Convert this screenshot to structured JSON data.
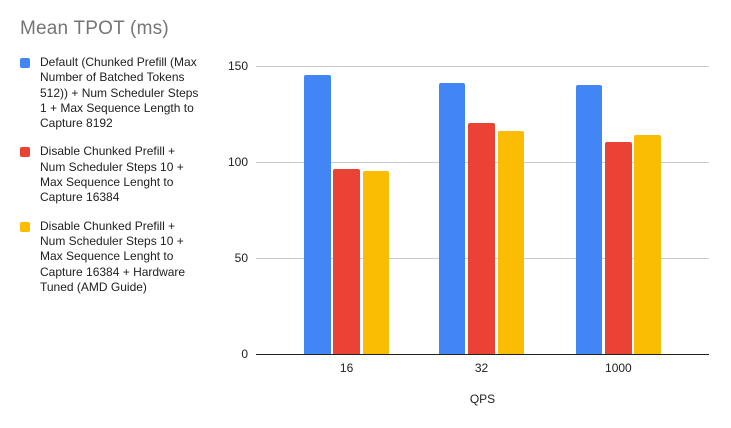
{
  "chart_data": {
    "type": "bar",
    "title": "Mean TPOT (ms)",
    "xlabel": "QPS",
    "ylabel": "",
    "categories": [
      "16",
      "32",
      "1000"
    ],
    "series": [
      {
        "name": "Default (Chunked Prefill (Max\nNumber of Batched Tokens\n512)) + Num Scheduler Steps\n1 + Max Sequence Length to\nCapture 8192",
        "color": "#4285f4",
        "values": [
          145,
          141,
          140
        ]
      },
      {
        "name": "Disable Chunked Prefill +\nNum Scheduler Steps 10 +\nMax Sequence Lenght to\nCapture 16384",
        "color": "#ea4335",
        "values": [
          96,
          120,
          110
        ]
      },
      {
        "name": "Disable Chunked Prefill +\nNum Scheduler Steps 10 +\nMax Sequence Lenght to\nCapture 16384 + Hardware\nTuned (AMD Guide)",
        "color": "#fbbc04",
        "values": [
          95,
          116,
          114
        ]
      }
    ],
    "ylim": [
      0,
      150
    ],
    "yticks": [
      0,
      50,
      100,
      150
    ],
    "grid": true,
    "legend_position": "left"
  }
}
